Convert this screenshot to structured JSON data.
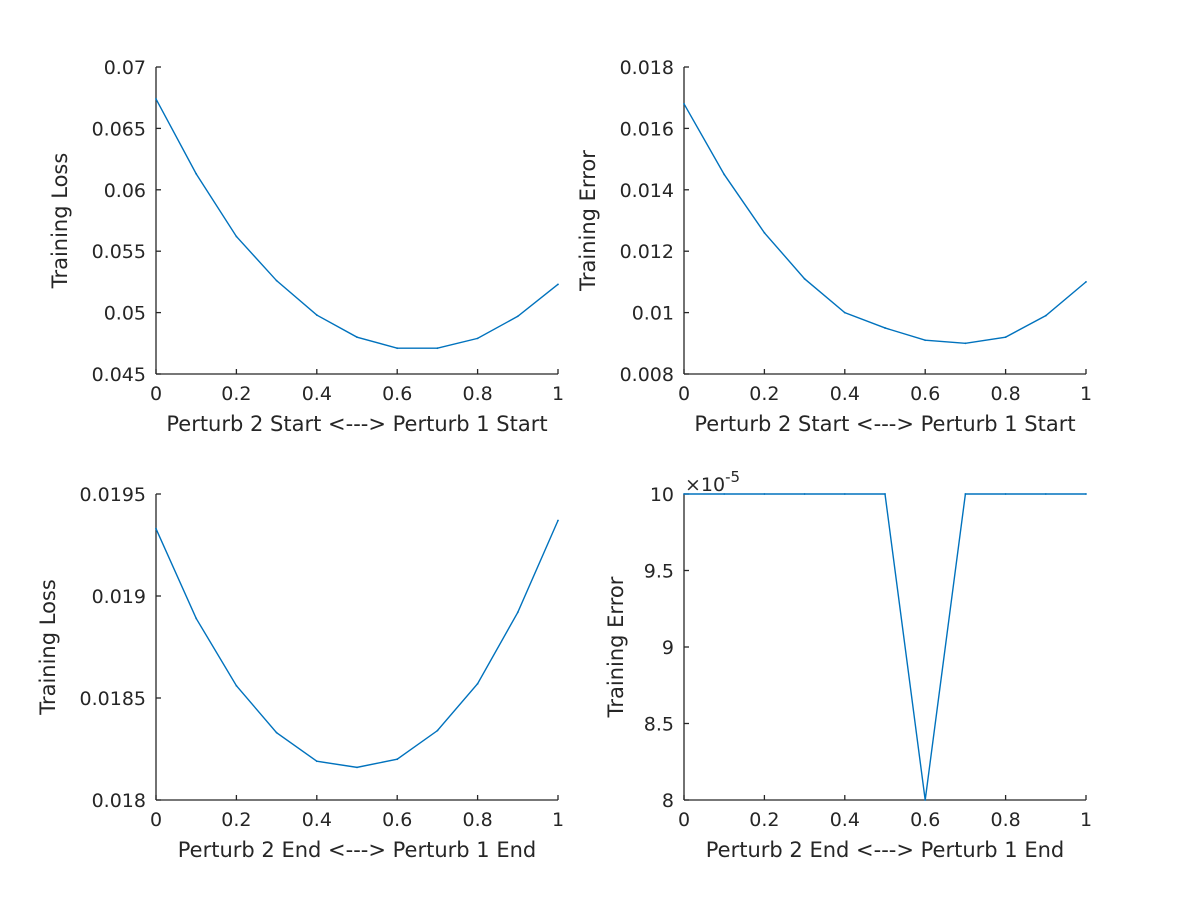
{
  "figure": {
    "background": "#ffffff"
  },
  "chart_data": [
    {
      "type": "line",
      "xlabel": "Perturb 2 Start <---> Perturb 1 Start",
      "ylabel": "Training Loss",
      "xlim": [
        0,
        1
      ],
      "ylim": [
        0.045,
        0.07
      ],
      "xticks": [
        0,
        0.2,
        0.4,
        0.6,
        0.8,
        1
      ],
      "xtick_labels": [
        "0",
        "0.2",
        "0.4",
        "0.6",
        "0.8",
        "1"
      ],
      "yticks": [
        0.045,
        0.05,
        0.055,
        0.06,
        0.065,
        0.07
      ],
      "ytick_labels": [
        "0.045",
        "0.05",
        "0.055",
        "0.06",
        "0.065",
        "0.07"
      ],
      "exponent_label": "",
      "grid": false,
      "color": "#0072bd",
      "series": [
        {
          "x": [
            0,
            0.1,
            0.2,
            0.3,
            0.4,
            0.5,
            0.6,
            0.7,
            0.8,
            0.9,
            1
          ],
          "y": [
            0.0674,
            0.0613,
            0.0562,
            0.0526,
            0.0498,
            0.048,
            0.0471,
            0.0471,
            0.0479,
            0.0497,
            0.0523
          ]
        }
      ]
    },
    {
      "type": "line",
      "xlabel": "Perturb 2 Start <---> Perturb 1 Start",
      "ylabel": "Training Error",
      "xlim": [
        0,
        1
      ],
      "ylim": [
        0.008,
        0.018
      ],
      "xticks": [
        0,
        0.2,
        0.4,
        0.6,
        0.8,
        1
      ],
      "xtick_labels": [
        "0",
        "0.2",
        "0.4",
        "0.6",
        "0.8",
        "1"
      ],
      "yticks": [
        0.008,
        0.01,
        0.012,
        0.014,
        0.016,
        0.018
      ],
      "ytick_labels": [
        "0.008",
        "0.01",
        "0.012",
        "0.014",
        "0.016",
        "0.018"
      ],
      "exponent_label": "",
      "grid": false,
      "color": "#0072bd",
      "series": [
        {
          "x": [
            0,
            0.1,
            0.2,
            0.3,
            0.4,
            0.5,
            0.6,
            0.7,
            0.8,
            0.9,
            1
          ],
          "y": [
            0.0168,
            0.0145,
            0.0126,
            0.0111,
            0.01,
            0.0095,
            0.0091,
            0.009,
            0.0092,
            0.0099,
            0.011
          ]
        }
      ]
    },
    {
      "type": "line",
      "xlabel": "Perturb 2 End <---> Perturb 1 End",
      "ylabel": "Training Loss",
      "xlim": [
        0,
        1
      ],
      "ylim": [
        0.018,
        0.0195
      ],
      "xticks": [
        0,
        0.2,
        0.4,
        0.6,
        0.8,
        1
      ],
      "xtick_labels": [
        "0",
        "0.2",
        "0.4",
        "0.6",
        "0.8",
        "1"
      ],
      "yticks": [
        0.018,
        0.0185,
        0.019,
        0.0195
      ],
      "ytick_labels": [
        "0.018",
        "0.0185",
        "0.019",
        "0.0195"
      ],
      "exponent_label": "",
      "grid": false,
      "color": "#0072bd",
      "series": [
        {
          "x": [
            0,
            0.1,
            0.2,
            0.3,
            0.4,
            0.5,
            0.6,
            0.7,
            0.8,
            0.9,
            1
          ],
          "y": [
            0.01933,
            0.01889,
            0.01856,
            0.01833,
            0.01819,
            0.01816,
            0.0182,
            0.01834,
            0.01857,
            0.01892,
            0.01937
          ]
        }
      ]
    },
    {
      "type": "line",
      "xlabel": "Perturb 2 End <---> Perturb 1 End",
      "ylabel": "Training Error",
      "xlim": [
        0,
        1
      ],
      "ylim": [
        8,
        10
      ],
      "xticks": [
        0,
        0.2,
        0.4,
        0.6,
        0.8,
        1
      ],
      "xtick_labels": [
        "0",
        "0.2",
        "0.4",
        "0.6",
        "0.8",
        "1"
      ],
      "yticks": [
        8,
        8.5,
        9,
        9.5,
        10
      ],
      "ytick_labels": [
        "8",
        "8.5",
        "9",
        "9.5",
        "10"
      ],
      "exponent_label": "×10",
      "exponent_power": "-5",
      "grid": false,
      "color": "#0072bd",
      "series": [
        {
          "x": [
            0,
            0.1,
            0.2,
            0.3,
            0.4,
            0.5,
            0.6,
            0.7,
            0.8,
            0.9,
            1
          ],
          "y": [
            10,
            10,
            10,
            10,
            10,
            10,
            8,
            10,
            10,
            10,
            10
          ]
        }
      ]
    }
  ]
}
